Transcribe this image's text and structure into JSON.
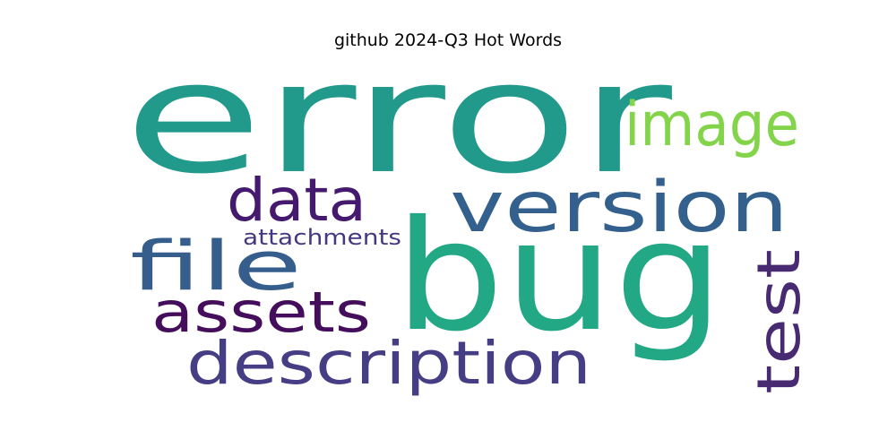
{
  "chart_data": {
    "type": "wordcloud",
    "title": "github 2024-Q3 Hot Words",
    "words": [
      {
        "text": "error",
        "color": "#21998b"
      },
      {
        "text": "bug",
        "color": "#22a884"
      },
      {
        "text": "version",
        "color": "#33608c"
      },
      {
        "text": "image",
        "color": "#84d44b"
      },
      {
        "text": "data",
        "color": "#451a6e"
      },
      {
        "text": "file",
        "color": "#355e8d"
      },
      {
        "text": "attachments",
        "color": "#453781"
      },
      {
        "text": "assets",
        "color": "#450e5c"
      },
      {
        "text": "test",
        "color": "#482a72"
      },
      {
        "text": "description",
        "color": "#463e85"
      }
    ]
  }
}
